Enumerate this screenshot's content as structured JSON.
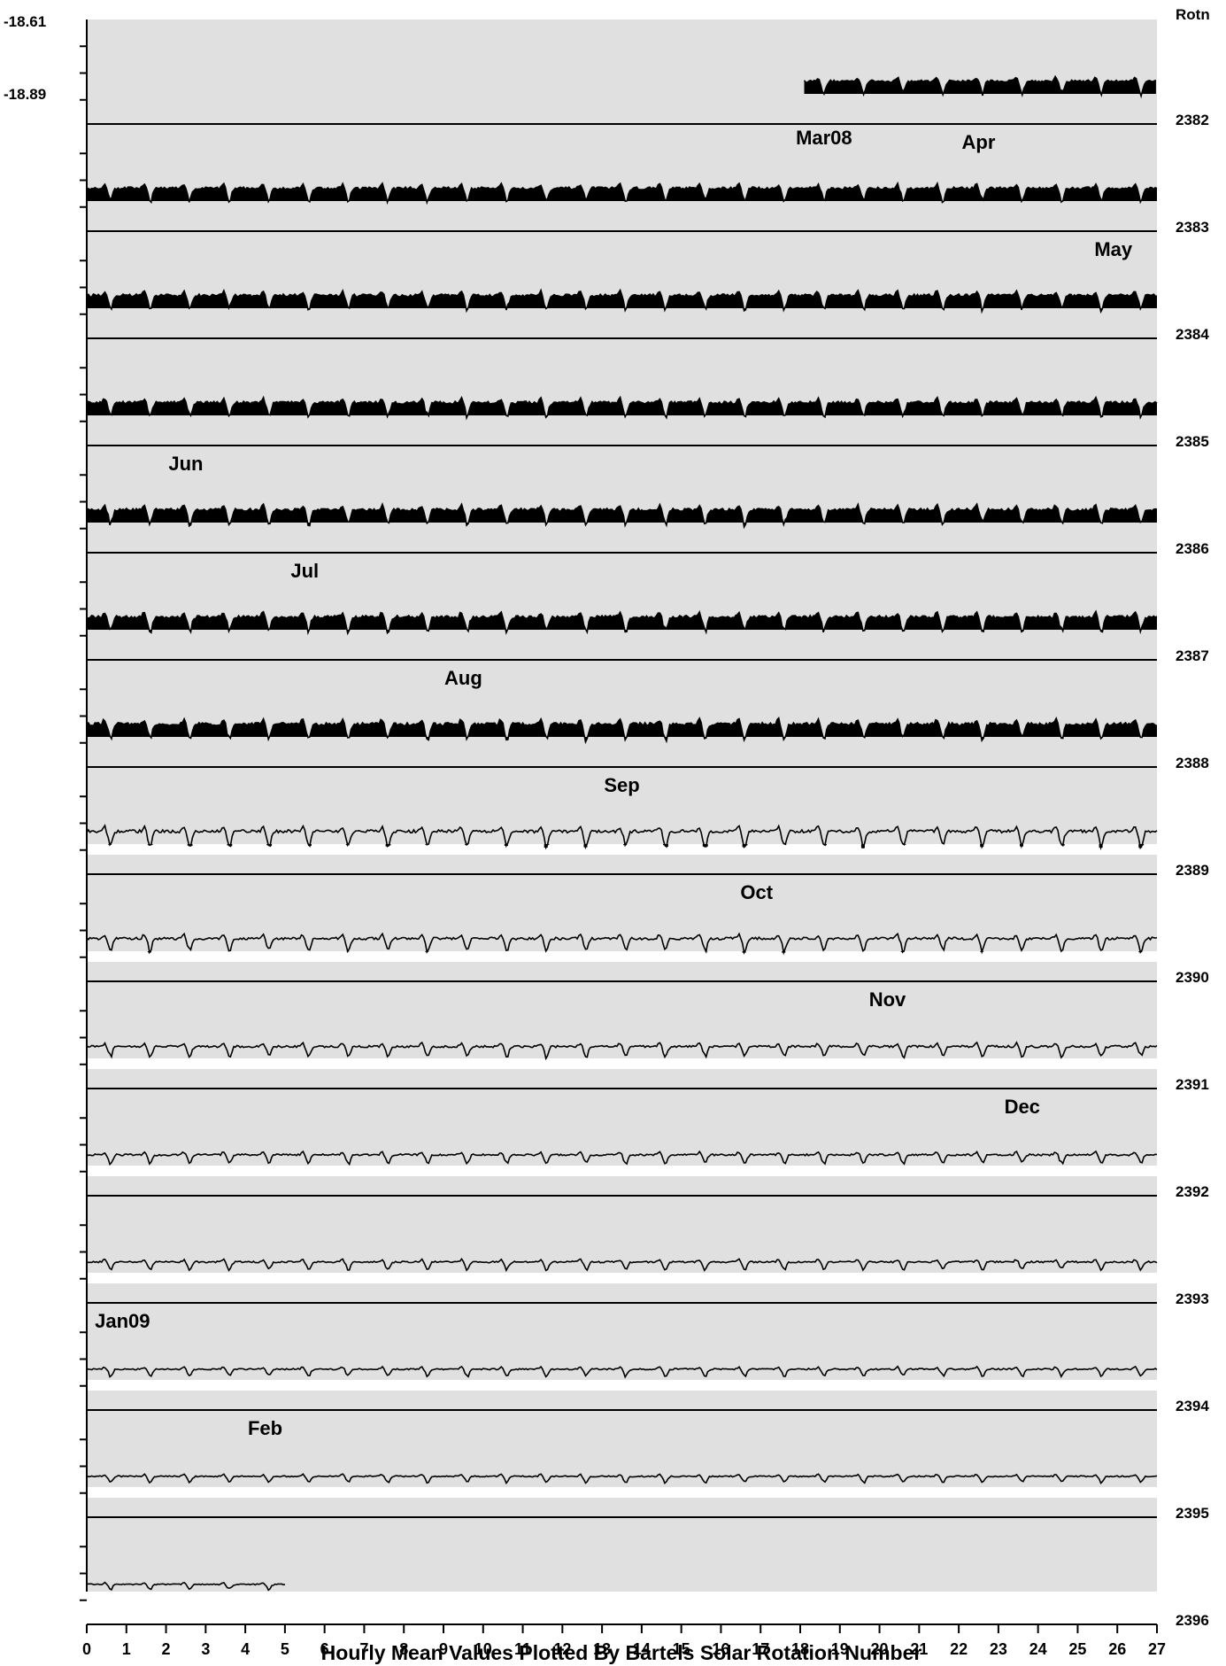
{
  "chart_data": {
    "type": "area",
    "title": "",
    "xlabel": "Hourly Mean Values Plotted By Bartels Solar Rotation Number",
    "ylabel": "",
    "right_header": "Rotn",
    "y_axis_top_label": "-18.61",
    "y_axis_bottom_label": "-18.89",
    "xlim": [
      0,
      27
    ],
    "x_ticks": [
      "0",
      "1",
      "2",
      "3",
      "4",
      "5",
      "6",
      "7",
      "8",
      "9",
      "10",
      "11",
      "12",
      "13",
      "14",
      "15",
      "16",
      "17",
      "18",
      "19",
      "20",
      "21",
      "22",
      "23",
      "24",
      "25",
      "26",
      "27"
    ],
    "grid": false,
    "colors": {
      "background": "#e0e0e0",
      "fill": "#000000",
      "baseline_band": "#ffffff",
      "line": "#000000"
    },
    "rows": [
      {
        "rotation": "2382",
        "month": "Mar08",
        "month_day": 18.6,
        "start": 18.1,
        "end": 27,
        "amp": 0.7,
        "offset": 0.45,
        "band": 0.0
      },
      {
        "rotation": "2383",
        "month": "Apr",
        "month_day": 22.5,
        "start": 0,
        "end": 27,
        "amp": 0.75,
        "offset": 0.45,
        "band": 0.0
      },
      {
        "rotation": "2384",
        "month": "May",
        "month_day": 25.9,
        "start": 0,
        "end": 27,
        "amp": 0.8,
        "offset": 0.45,
        "band": 0.0
      },
      {
        "rotation": "2385",
        "month": "",
        "month_day": null,
        "start": 0,
        "end": 27,
        "amp": 0.8,
        "offset": 0.45,
        "band": 0.0
      },
      {
        "rotation": "2386",
        "month": "Jun",
        "month_day": 2.5,
        "start": 0,
        "end": 27,
        "amp": 0.85,
        "offset": 0.45,
        "band": 0.0
      },
      {
        "rotation": "2387",
        "month": "Jul",
        "month_day": 5.5,
        "start": 0,
        "end": 27,
        "amp": 0.85,
        "offset": 0.45,
        "band": 0.0
      },
      {
        "rotation": "2388",
        "month": "Aug",
        "month_day": 9.5,
        "start": 0,
        "end": 27,
        "amp": 0.9,
        "offset": 0.45,
        "band": 0.0
      },
      {
        "rotation": "2389",
        "month": "Sep",
        "month_day": 13.5,
        "start": 0,
        "end": 27,
        "amp": 0.85,
        "offset": 0.45,
        "band": 0.12
      },
      {
        "rotation": "2390",
        "month": "Oct",
        "month_day": 16.9,
        "start": 0,
        "end": 27,
        "amp": 0.7,
        "offset": 0.45,
        "band": 0.12
      },
      {
        "rotation": "2391",
        "month": "Nov",
        "month_day": 20.2,
        "start": 0,
        "end": 27,
        "amp": 0.6,
        "offset": 0.42,
        "band": 0.12
      },
      {
        "rotation": "2392",
        "month": "Dec",
        "month_day": 23.6,
        "start": 0,
        "end": 27,
        "amp": 0.5,
        "offset": 0.38,
        "band": 0.12
      },
      {
        "rotation": "2393",
        "month": "",
        "month_day": null,
        "start": 0,
        "end": 27,
        "amp": 0.45,
        "offset": 0.38,
        "band": 0.12
      },
      {
        "rotation": "2394",
        "month": "Jan09",
        "month_day": 0.9,
        "start": 0,
        "end": 27,
        "amp": 0.4,
        "offset": 0.38,
        "band": 0.12
      },
      {
        "rotation": "2395",
        "month": "Feb",
        "month_day": 4.5,
        "start": 0,
        "end": 27,
        "amp": 0.35,
        "offset": 0.38,
        "band": 0.12
      },
      {
        "rotation": "2396",
        "month": "",
        "month_day": null,
        "start": 0,
        "end": 5,
        "amp": 0.3,
        "offset": 0.35,
        "band": 0.12
      }
    ]
  }
}
